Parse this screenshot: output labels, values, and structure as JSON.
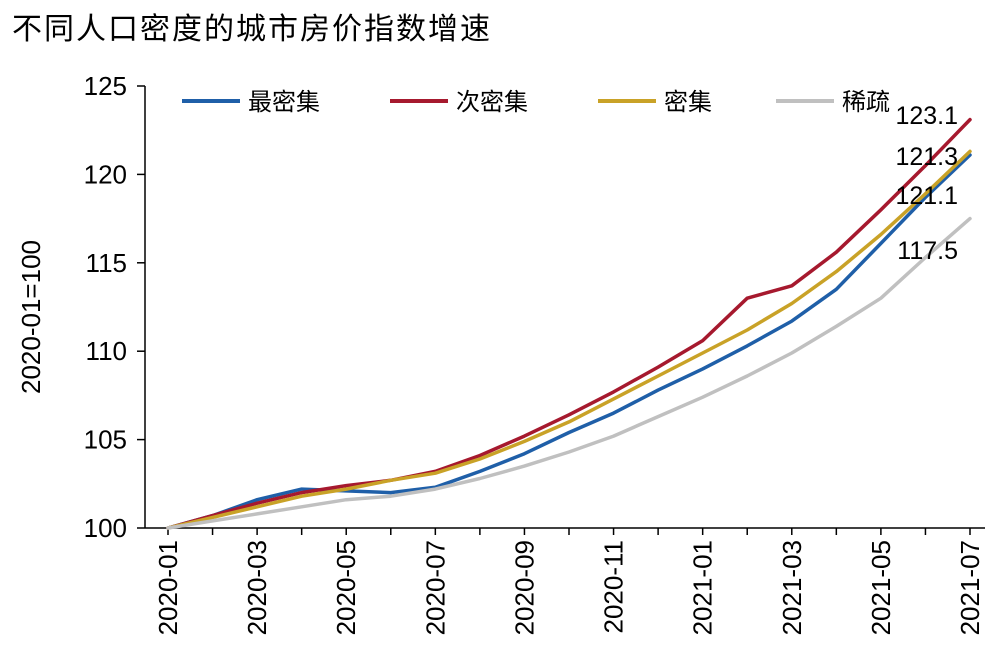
{
  "chart_data": {
    "type": "line",
    "title": "不同人口密度的城市房价指数增速",
    "ylabel": "2020-01=100",
    "xlabel": "",
    "ylim": [
      100,
      125
    ],
    "yticks": [
      100,
      105,
      110,
      115,
      120,
      125
    ],
    "x": [
      "2020-01",
      "2020-02",
      "2020-03",
      "2020-04",
      "2020-05",
      "2020-06",
      "2020-07",
      "2020-08",
      "2020-09",
      "2020-10",
      "2020-11",
      "2020-12",
      "2021-01",
      "2021-02",
      "2021-03",
      "2021-04",
      "2021-05",
      "2021-06",
      "2021-07"
    ],
    "xtick_labels": [
      "2020-01",
      "2020-03",
      "2020-05",
      "2020-07",
      "2020-09",
      "2020-11",
      "2021-01",
      "2021-03",
      "2021-05",
      "2021-07"
    ],
    "legend_position": "top",
    "grid": false,
    "series": [
      {
        "name": "最密集",
        "color": "#1f5fa8",
        "values": [
          100,
          100.7,
          101.6,
          102.2,
          102.1,
          102.0,
          102.3,
          103.2,
          104.2,
          105.4,
          106.5,
          107.8,
          109.0,
          110.3,
          111.7,
          113.5,
          116.1,
          118.7,
          121.1
        ]
      },
      {
        "name": "次密集",
        "color": "#a6192e",
        "values": [
          100,
          100.7,
          101.4,
          102.0,
          102.4,
          102.7,
          103.2,
          104.1,
          105.2,
          106.4,
          107.7,
          109.1,
          110.6,
          113.0,
          113.7,
          115.6,
          118.0,
          120.5,
          123.1
        ]
      },
      {
        "name": "密集",
        "color": "#c9a227",
        "values": [
          100,
          100.6,
          101.2,
          101.8,
          102.2,
          102.7,
          103.1,
          103.9,
          104.9,
          106.0,
          107.3,
          108.6,
          109.9,
          111.2,
          112.7,
          114.5,
          116.6,
          118.9,
          121.3
        ]
      },
      {
        "name": "稀疏",
        "color": "#c0c0c0",
        "values": [
          100,
          100.4,
          100.8,
          101.2,
          101.6,
          101.8,
          102.2,
          102.8,
          103.5,
          104.3,
          105.2,
          106.3,
          107.4,
          108.6,
          109.9,
          111.4,
          113.0,
          115.3,
          117.5
        ]
      }
    ],
    "end_labels": [
      "123.1",
      "121.3",
      "121.1",
      "117.5"
    ]
  }
}
